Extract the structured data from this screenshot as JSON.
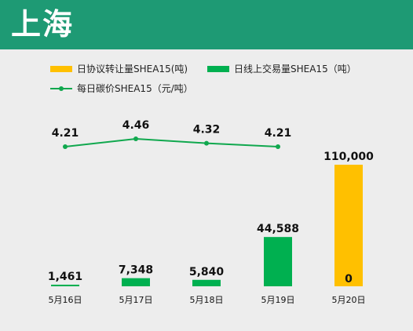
{
  "header": {
    "title": "上海"
  },
  "legend": {
    "agreement_label": "日协议转让量SHEA15(吨)",
    "online_label": "日线上交易量SHEA15（吨）",
    "price_label": "每日碳价SHEA15（元/吨）"
  },
  "colors": {
    "header_bg": "#1e9a74",
    "agreement": "#ffc000",
    "online": "#00b050",
    "price_line": "#10a84e"
  },
  "chart_data": {
    "type": "bar",
    "categories": [
      "5月16日",
      "5月17日",
      "5月18日",
      "5月19日",
      "5月20日"
    ],
    "series": [
      {
        "name": "日协议转让量SHEA15(吨)",
        "values": [
          null,
          null,
          null,
          null,
          110000
        ]
      },
      {
        "name": "日线上交易量SHEA15（吨）",
        "values": [
          1461,
          7348,
          5840,
          44588,
          0
        ]
      },
      {
        "name": "每日碳价SHEA15（元/吨）",
        "type": "line",
        "values": [
          4.21,
          4.46,
          4.32,
          4.21,
          null
        ]
      }
    ],
    "bar_labels": [
      "1,461",
      "7,348",
      "5,840",
      "44,588",
      "110,000"
    ],
    "online_zero_label": "0",
    "price_labels": [
      "4.21",
      "4.46",
      "4.32",
      "4.21"
    ],
    "legend_position": "top",
    "grid": false
  }
}
